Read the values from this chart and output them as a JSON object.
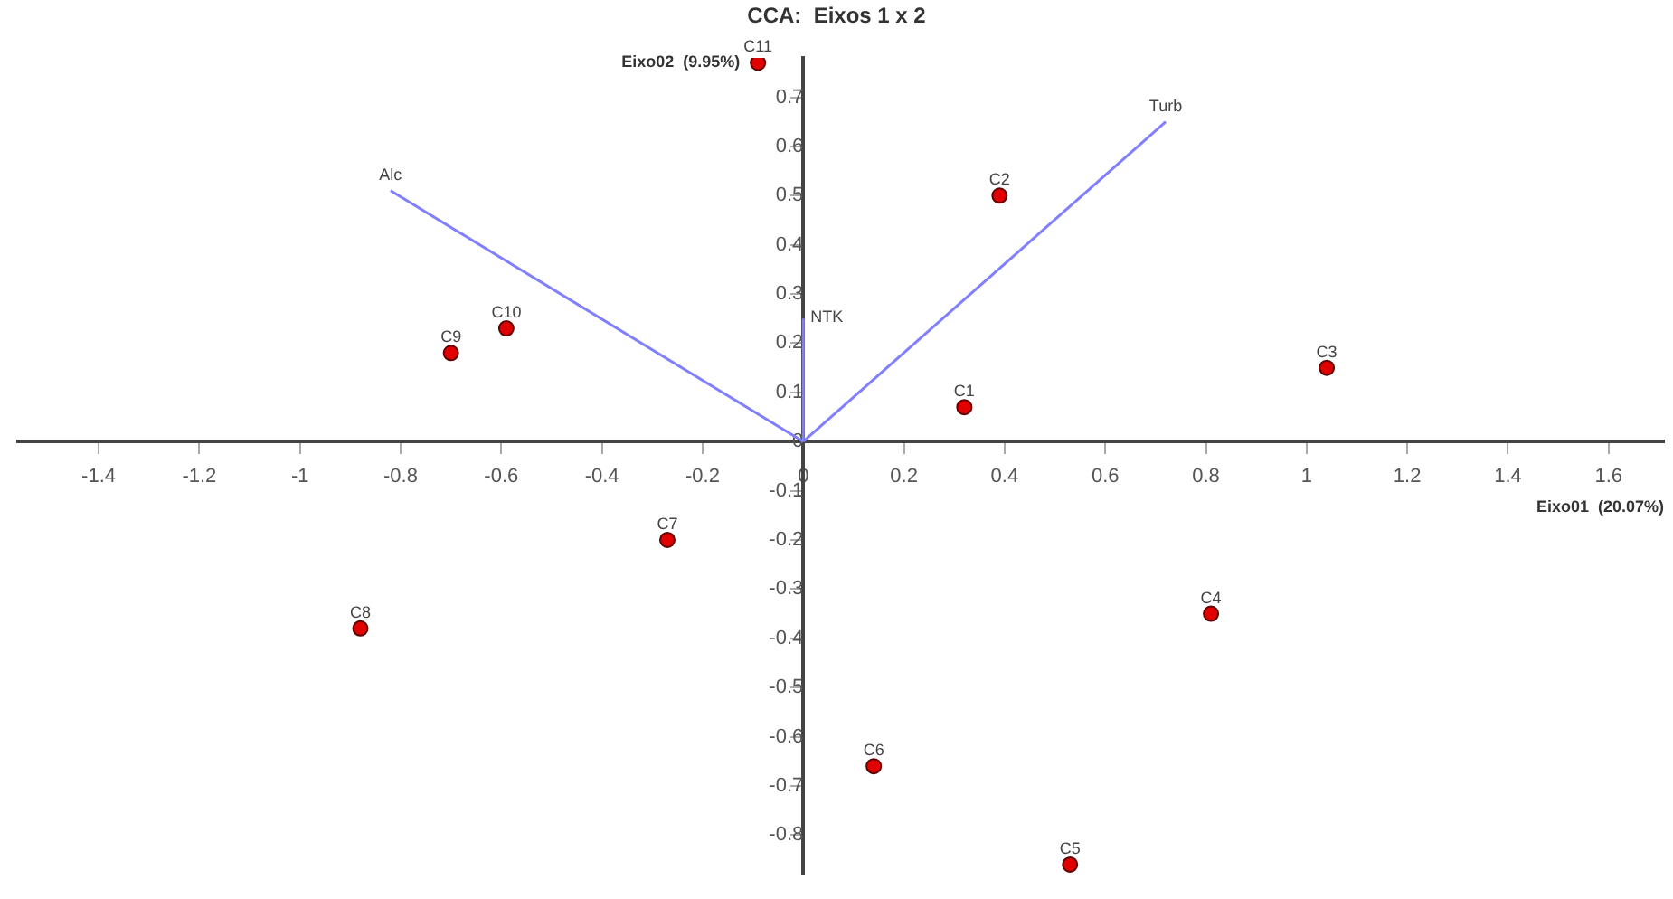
{
  "chart_data": {
    "type": "scatter",
    "title": "CCA:  Eixos 1 x 2",
    "xlabel": "Eixo01  (20.07%)",
    "ylabel": "Eixo02  (9.95%)",
    "xlim": [
      -1.56,
      1.71
    ],
    "ylim": [
      -0.88,
      0.78
    ],
    "xticks": [
      -1.4,
      -1.2,
      -1,
      -0.8,
      -0.6,
      -0.4,
      -0.2,
      0,
      0.2,
      0.4,
      0.6,
      0.8,
      1,
      1.2,
      1.4,
      1.6
    ],
    "yticks": [
      -0.8,
      -0.7,
      -0.6,
      -0.5,
      -0.4,
      -0.3,
      -0.2,
      -0.1,
      0,
      0.1,
      0.2,
      0.3,
      0.4,
      0.5,
      0.6,
      0.7
    ],
    "grid": false,
    "legend": false,
    "marker": "circle",
    "series": [
      {
        "type": "line",
        "color": "#7f7fff",
        "marker": "none",
        "x": [
          0,
          -0.82
        ],
        "values": [
          0,
          0.51
        ]
      },
      {
        "type": "line",
        "color": "#7f7fff",
        "marker": "none",
        "x": [
          0,
          0.72
        ],
        "values": [
          0,
          0.65
        ]
      },
      {
        "type": "line",
        "color": "#7f7fff",
        "marker": "none",
        "x": [
          0,
          0
        ],
        "values": [
          0,
          0.25
        ]
      },
      {
        "color": "#e00000",
        "x": [
          0.32,
          0.39,
          1.04,
          0.81,
          0.53,
          0.14,
          -0.27,
          -0.88,
          -0.7,
          -0.59,
          -0.09
        ],
        "values": [
          0.07,
          0.5,
          0.15,
          -0.35,
          -0.86,
          -0.66,
          -0.2,
          -0.38,
          0.18,
          0.23,
          0.77
        ]
      }
    ],
    "annotations": [
      {
        "text": "Alc",
        "x": -0.82,
        "y": 0.51
      },
      {
        "text": "Turb",
        "x": 0.72,
        "y": 0.65
      },
      {
        "text": "NTK",
        "x": 0,
        "y": 0.25
      },
      {
        "text": "C1",
        "x": 0.32,
        "y": 0.07
      },
      {
        "text": "C2",
        "x": 0.39,
        "y": 0.5
      },
      {
        "text": "C3",
        "x": 1.04,
        "y": 0.15
      },
      {
        "text": "C4",
        "x": 0.81,
        "y": -0.35
      },
      {
        "text": "C5",
        "x": 0.53,
        "y": -0.86
      },
      {
        "text": "C6",
        "x": 0.14,
        "y": -0.66
      },
      {
        "text": "C7",
        "x": -0.27,
        "y": -0.2
      },
      {
        "text": "C8",
        "x": -0.88,
        "y": -0.38
      },
      {
        "text": "C9",
        "x": -0.7,
        "y": 0.18
      },
      {
        "text": "C10",
        "x": -0.59,
        "y": 0.23
      },
      {
        "text": "C11",
        "x": -0.09,
        "y": 0.77
      }
    ]
  }
}
